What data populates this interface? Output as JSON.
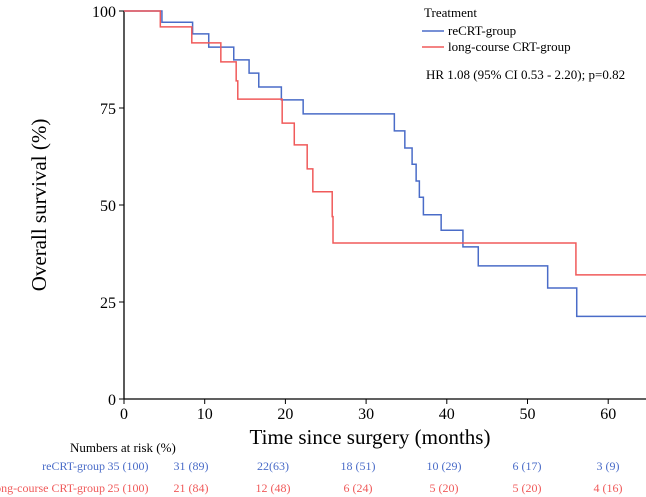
{
  "chart_data": {
    "type": "line",
    "subtype": "kaplan-meier step",
    "xlabel": "Time since surgery (months)",
    "ylabel": "Overall survival (%)",
    "xlim": [
      0,
      65
    ],
    "ylim": [
      0,
      100
    ],
    "xticks": [
      0,
      10,
      20,
      30,
      40,
      50,
      60
    ],
    "yticks": [
      0,
      25,
      50,
      75,
      100
    ],
    "grid": false,
    "legend": {
      "title": "Treatment",
      "placement": "top-right",
      "entries": [
        "reCRT-group",
        "long-course CRT-group"
      ]
    },
    "annotation": "HR 1.08 (95% CI 0.53 - 2.20); p=0.82",
    "series": [
      {
        "name": "reCRT-group",
        "color": "#4a6cc8",
        "steps": [
          [
            0,
            100
          ],
          [
            4.7,
            97.1
          ],
          [
            8.5,
            94.1
          ],
          [
            10.5,
            90.7
          ],
          [
            13.6,
            87.4
          ],
          [
            15.5,
            84.0
          ],
          [
            16.7,
            80.4
          ],
          [
            19.5,
            77.1
          ],
          [
            22.2,
            73.5
          ],
          [
            33.5,
            69.1
          ],
          [
            34.8,
            64.7
          ],
          [
            35.7,
            60.5
          ],
          [
            36.2,
            56.2
          ],
          [
            36.6,
            52.0
          ],
          [
            37.1,
            47.5
          ],
          [
            39.3,
            43.5
          ],
          [
            42.0,
            39.2
          ],
          [
            43.9,
            34.3
          ],
          [
            52.5,
            28.6
          ],
          [
            56.1,
            21.3
          ],
          [
            65,
            21.3
          ]
        ]
      },
      {
        "name": "long-course CRT-group",
        "color": "#f05a5a",
        "steps": [
          [
            0,
            100
          ],
          [
            4.5,
            95.9
          ],
          [
            8.4,
            91.8
          ],
          [
            12.0,
            86.9
          ],
          [
            13.9,
            82.0
          ],
          [
            14.1,
            77.3
          ],
          [
            19.6,
            71.1
          ],
          [
            21.1,
            65.5
          ],
          [
            22.7,
            59.3
          ],
          [
            23.4,
            53.4
          ],
          [
            25.8,
            47.0
          ],
          [
            25.9,
            40.2
          ],
          [
            56.0,
            32.0
          ],
          [
            65,
            32.0
          ]
        ]
      }
    ],
    "risk_table": {
      "title": "Numbers at risk (%)",
      "rows": [
        {
          "label": "reCRT-group",
          "color": "#4a6cc8",
          "values": [
            "35 (100)",
            "31 (89)",
            "22(63)",
            "18 (51)",
            "10 (29)",
            "6 (17)",
            "3 (9)"
          ]
        },
        {
          "label": "long-course CRT-group",
          "color": "#f05a5a",
          "values": [
            "25 (100)",
            "21 (84)",
            "12 (48)",
            "6 (24)",
            "5 (20)",
            "5 (20)",
            "4 (16)"
          ]
        }
      ]
    }
  }
}
